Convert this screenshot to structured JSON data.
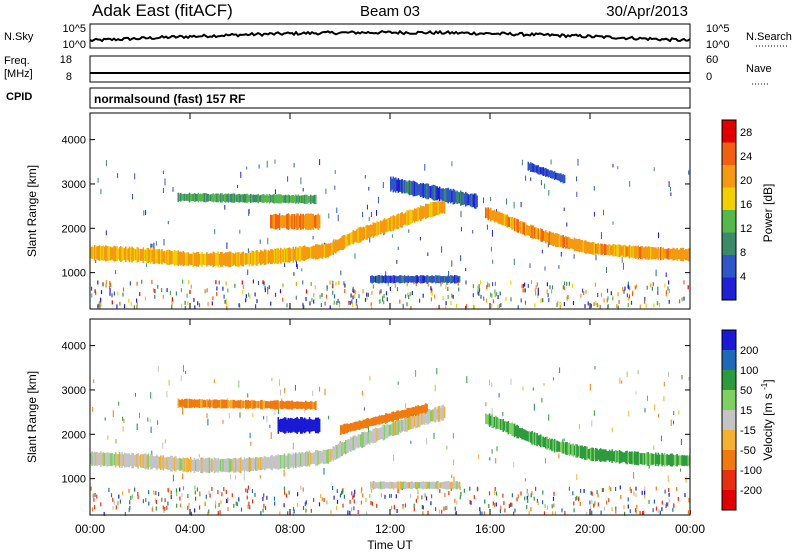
{
  "header": {
    "station": "Adak East (fitACF)",
    "beam": "Beam 03",
    "date": "30/Apr/2013"
  },
  "chart_data": [
    {
      "type": "line",
      "panel": "noise",
      "left_label": "N.Sky",
      "right_label": "N.Search",
      "left_ticks": [
        "10^5",
        "10^0"
      ],
      "right_ticks": [
        "10^5",
        "10^0"
      ],
      "scale": "log"
    },
    {
      "type": "line",
      "panel": "frequency / nave",
      "left_label_1": "Freq.",
      "left_label_2": "[MHz]",
      "right_label": "Nave",
      "left_ticks": [
        18,
        8
      ],
      "right_ticks": [
        60,
        0
      ],
      "ylim_left": [
        8,
        18
      ],
      "ylim_right": [
        0,
        60
      ],
      "freq_MHz": 8.5,
      "nave": 0
    },
    {
      "type": "table",
      "panel": "cpid",
      "label": "CPID",
      "program": "normalsound (fast) 157 RF"
    },
    {
      "type": "heatmap",
      "panel": "power",
      "ylabel": "Slant Range [km]",
      "ylim": [
        180,
        4600
      ],
      "yticks": [
        1000,
        2000,
        3000,
        4000
      ],
      "xlim": [
        0,
        24
      ],
      "colorbar_label": "Power [dB]",
      "colorbar_ticks": [
        4,
        8,
        12,
        16,
        20,
        24,
        28
      ],
      "colorbar_range": [
        0,
        30
      ],
      "bands": [
        {
          "t": [
            0,
            2,
            4,
            6,
            8,
            9.5,
            10.5,
            11.5,
            12.5,
            13.5,
            14.2
          ],
          "range": [
            1450,
            1400,
            1300,
            1300,
            1400,
            1500,
            1800,
            2000,
            2200,
            2400,
            2500
          ],
          "width": 300,
          "dB": 21
        },
        {
          "t": [
            15.8,
            16.5,
            17.5,
            18.5,
            20,
            22,
            24
          ],
          "range": [
            2350,
            2200,
            1950,
            1750,
            1550,
            1450,
            1400
          ],
          "width": 260,
          "dB": 22
        },
        {
          "t": [
            7.2,
            9.2
          ],
          "range": [
            2150,
            2150
          ],
          "width": 320,
          "dB": 24
        },
        {
          "t": [
            3.5,
            9.0
          ],
          "range": [
            2700,
            2650
          ],
          "width": 180,
          "dB": 13
        },
        {
          "t": [
            11.2,
            14.8
          ],
          "range": [
            850,
            850
          ],
          "width": 160,
          "dB": 6
        },
        {
          "t": [
            12.0,
            15.5
          ],
          "range": [
            3000,
            2600
          ],
          "width": 300,
          "dB": 6
        },
        {
          "t": [
            17.5,
            19.0
          ],
          "range": [
            3400,
            3100
          ],
          "width": 180,
          "dB": 5
        }
      ]
    },
    {
      "type": "heatmap",
      "panel": "velocity",
      "ylabel": "Slant Range [km]",
      "ylim": [
        180,
        4600
      ],
      "yticks": [
        1000,
        2000,
        3000,
        4000
      ],
      "xlim": [
        0,
        24
      ],
      "xticks": [
        "00:00",
        "04:00",
        "08:00",
        "12:00",
        "16:00",
        "20:00",
        "00:00"
      ],
      "xlabel": "Time UT",
      "colorbar_label": "Velocity [m s^-1]",
      "colorbar_ticks": [
        "200",
        "100",
        "50",
        "15",
        "-15",
        "-50",
        "-100",
        "-200"
      ],
      "bands": [
        {
          "t": [
            0,
            2,
            4,
            6,
            8,
            9.5,
            10.5,
            11.5,
            12.5,
            13.5,
            14.2
          ],
          "range": [
            1450,
            1400,
            1300,
            1300,
            1400,
            1500,
            1800,
            2000,
            2200,
            2400,
            2500
          ],
          "width": 300,
          "v": 0
        },
        {
          "t": [
            15.8,
            16.5,
            17.5,
            18.5,
            20,
            22,
            24
          ],
          "range": [
            2350,
            2200,
            1950,
            1750,
            1550,
            1450,
            1400
          ],
          "width": 260,
          "v": 40
        },
        {
          "t": [
            7.5,
            9.2
          ],
          "range": [
            2200,
            2200
          ],
          "width": 320,
          "v": 180
        },
        {
          "t": [
            3.5,
            9.0
          ],
          "range": [
            2700,
            2650
          ],
          "width": 180,
          "v": -60
        },
        {
          "t": [
            11.2,
            14.8
          ],
          "range": [
            850,
            850
          ],
          "width": 160,
          "v": 0
        },
        {
          "t": [
            10.0,
            13.5
          ],
          "range": [
            2100,
            2600
          ],
          "width": 200,
          "v": -70
        }
      ]
    }
  ]
}
